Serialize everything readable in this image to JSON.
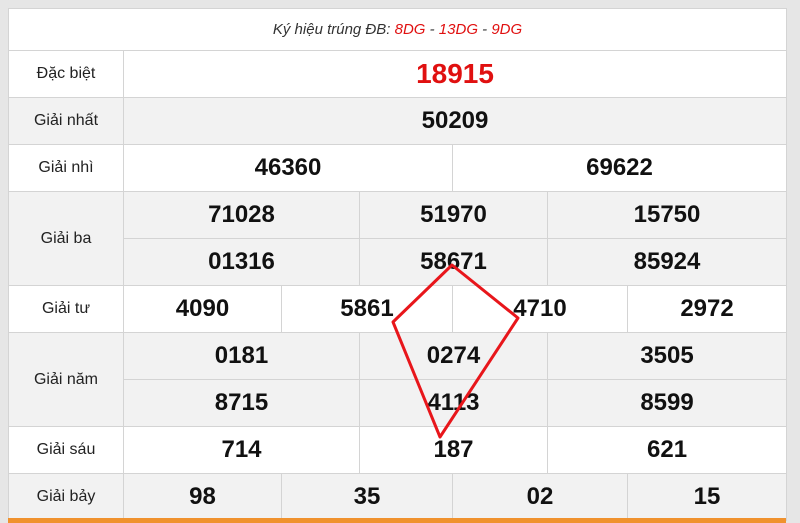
{
  "header": {
    "prefix": "Ký hiệu trúng ĐB: ",
    "codes": [
      "8DG",
      "13DG",
      "9DG"
    ],
    "sep": " - "
  },
  "rows": {
    "db": {
      "label": "Đặc biệt",
      "values": [
        "18915"
      ]
    },
    "g1": {
      "label": "Giải nhất",
      "values": [
        "50209"
      ]
    },
    "g2": {
      "label": "Giải nhì",
      "values": [
        "46360",
        "69622"
      ]
    },
    "g3": {
      "label": "Giải ba",
      "values": [
        "71028",
        "51970",
        "15750",
        "01316",
        "58671",
        "85924"
      ]
    },
    "g4": {
      "label": "Giải tư",
      "values": [
        "4090",
        "5861",
        "4710",
        "2972"
      ]
    },
    "g5": {
      "label": "Giải năm",
      "values": [
        "0181",
        "0274",
        "3505",
        "8715",
        "4113",
        "8599"
      ]
    },
    "g6": {
      "label": "Giải sáu",
      "values": [
        "714",
        "187",
        "621"
      ]
    },
    "g7": {
      "label": "Giải bảy",
      "values": [
        "98",
        "35",
        "02",
        "15"
      ]
    }
  },
  "colors": {
    "accent": "#e01010",
    "bar": "#f0922e",
    "annotation": "#e8161b"
  },
  "annotation": {
    "shape": "red hand-drawn kite connecting 58671, 5861, 4710, 187"
  }
}
